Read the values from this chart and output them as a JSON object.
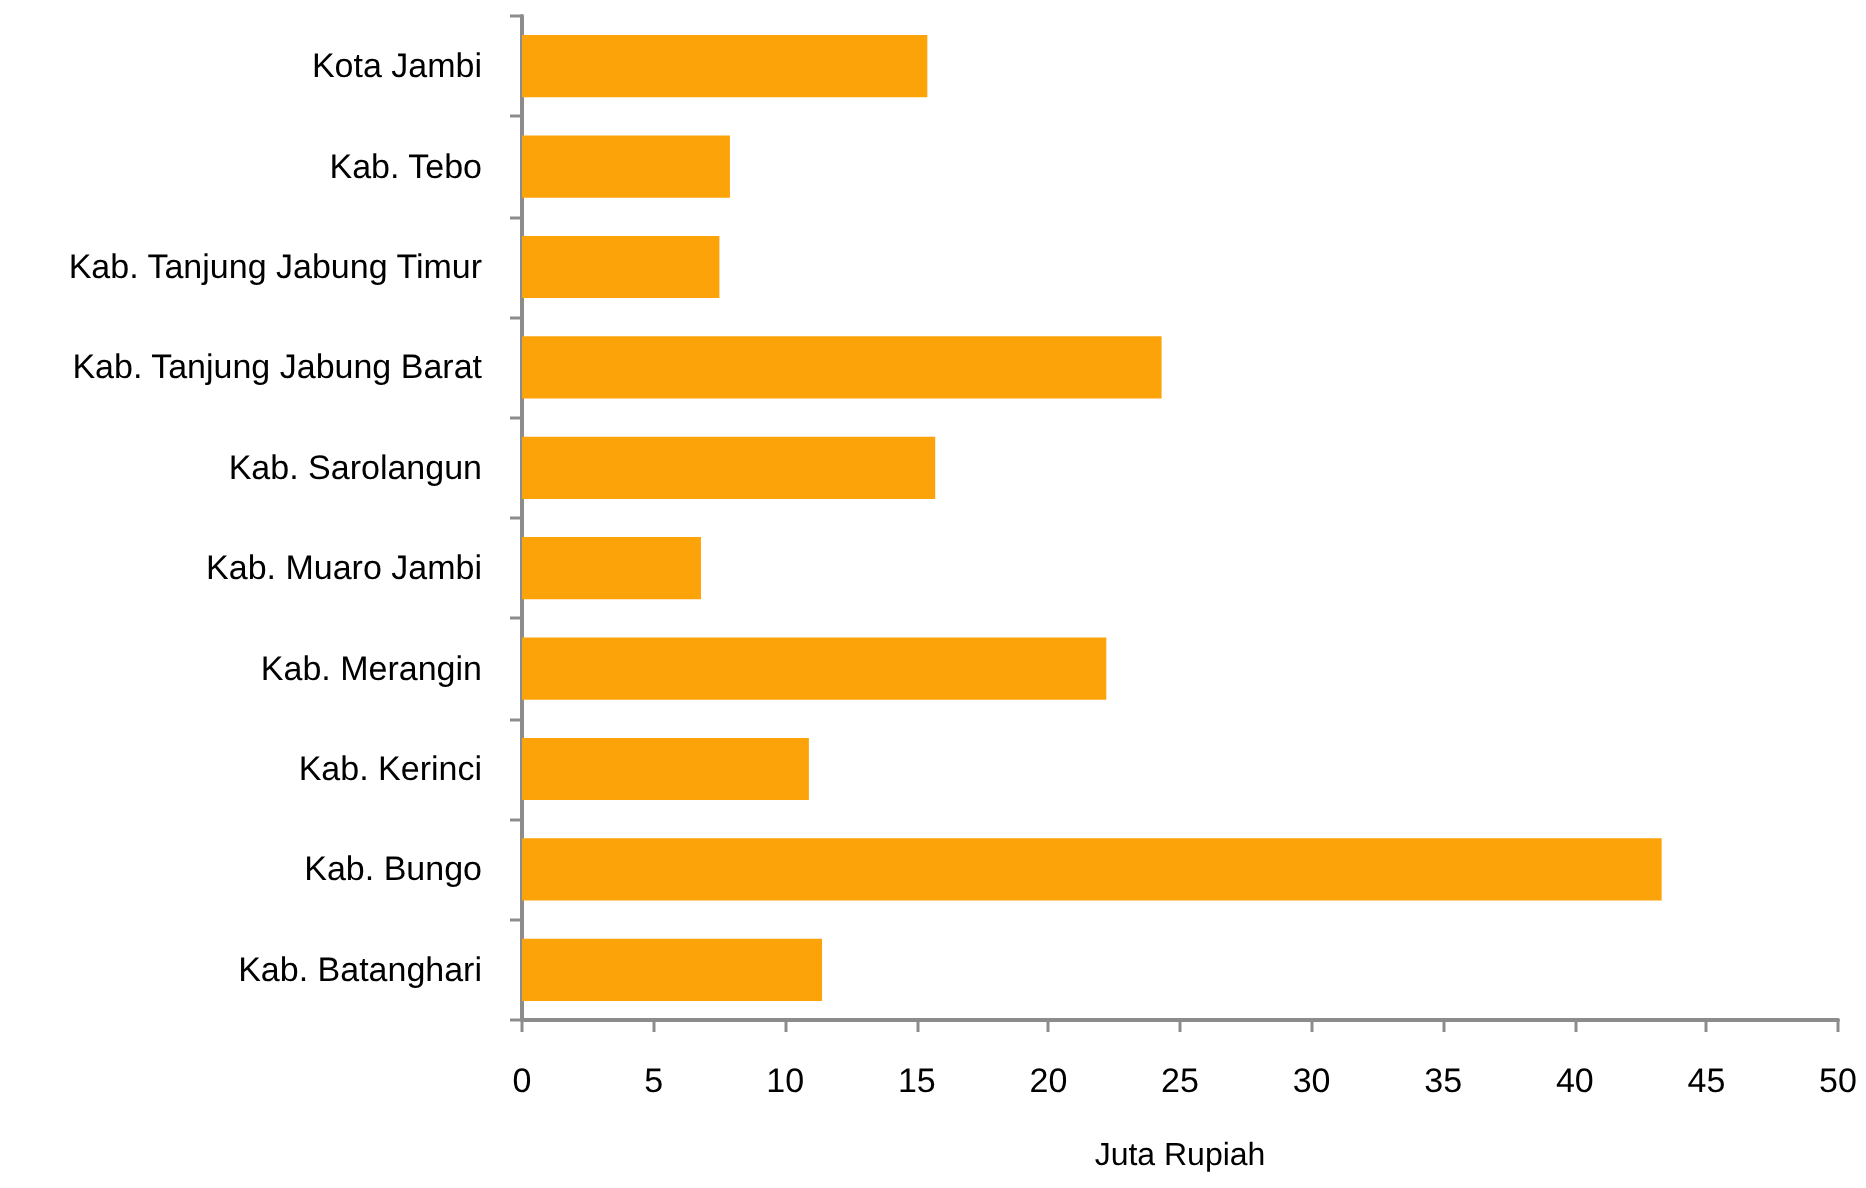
{
  "chart_data": {
    "type": "bar",
    "orientation": "horizontal",
    "xlabel": "Juta Rupiah",
    "categories": [
      "Kota Jambi",
      "Kab. Tebo",
      "Kab. Tanjung Jabung Timur",
      "Kab. Tanjung Jabung Barat",
      "Kab. Sarolangun",
      "Kab. Muaro Jambi",
      "Kab. Merangin",
      "Kab. Kerinci",
      "Kab. Bungo",
      "Kab. Batanghari"
    ],
    "values": [
      15.4,
      7.9,
      7.5,
      24.3,
      15.7,
      6.8,
      22.2,
      10.9,
      43.3,
      11.4
    ],
    "color": "#fca30a",
    "xlim": [
      0,
      50
    ],
    "xticks": [
      0,
      5,
      10,
      15,
      20,
      25,
      30,
      35,
      40,
      45,
      50
    ]
  }
}
